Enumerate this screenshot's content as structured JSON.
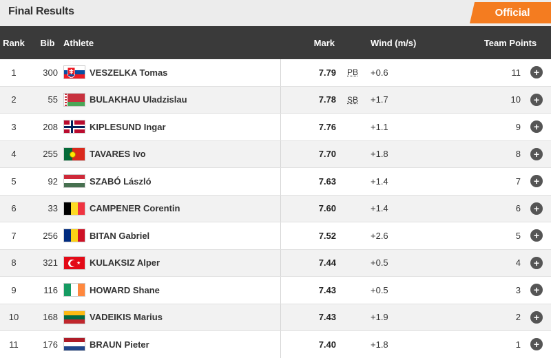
{
  "header": {
    "title": "Final Results",
    "status_badge": "Official"
  },
  "columns": {
    "rank": "Rank",
    "bib": "Bib",
    "athlete": "Athlete",
    "mark": "Mark",
    "wind": "Wind (m/s)",
    "team_points": "Team Points"
  },
  "rows": [
    {
      "rank": "1",
      "bib": "300",
      "flag": "svk",
      "athlete": "VESZELKA Tomas",
      "mark": "7.79",
      "note": "PB",
      "wind": "+0.6",
      "points": "11"
    },
    {
      "rank": "2",
      "bib": "55",
      "flag": "blr",
      "athlete": "BULAKHAU Uladzislau",
      "mark": "7.78",
      "note": "SB",
      "wind": "+1.7",
      "points": "10"
    },
    {
      "rank": "3",
      "bib": "208",
      "flag": "nor",
      "athlete": "KIPLESUND Ingar",
      "mark": "7.76",
      "note": "",
      "wind": "+1.1",
      "points": "9"
    },
    {
      "rank": "4",
      "bib": "255",
      "flag": "por",
      "athlete": "TAVARES Ivo",
      "mark": "7.70",
      "note": "",
      "wind": "+1.8",
      "points": "8"
    },
    {
      "rank": "5",
      "bib": "92",
      "flag": "hun",
      "athlete": "SZABÓ László",
      "mark": "7.63",
      "note": "",
      "wind": "+1.4",
      "points": "7"
    },
    {
      "rank": "6",
      "bib": "33",
      "flag": "bel",
      "athlete": "CAMPENER Corentin",
      "mark": "7.60",
      "note": "",
      "wind": "+1.4",
      "points": "6"
    },
    {
      "rank": "7",
      "bib": "256",
      "flag": "rou",
      "athlete": "BITAN Gabriel",
      "mark": "7.52",
      "note": "",
      "wind": "+2.6",
      "points": "5"
    },
    {
      "rank": "8",
      "bib": "321",
      "flag": "tur",
      "athlete": "KULAKSIZ Alper",
      "mark": "7.44",
      "note": "",
      "wind": "+0.5",
      "points": "4"
    },
    {
      "rank": "9",
      "bib": "116",
      "flag": "irl",
      "athlete": "HOWARD Shane",
      "mark": "7.43",
      "note": "",
      "wind": "+0.5",
      "points": "3"
    },
    {
      "rank": "10",
      "bib": "168",
      "flag": "ltu",
      "athlete": "VADEIKIS Marius",
      "mark": "7.43",
      "note": "",
      "wind": "+1.9",
      "points": "2"
    },
    {
      "rank": "11",
      "bib": "176",
      "flag": "ned",
      "athlete": "BRAUN Pieter",
      "mark": "7.40",
      "note": "",
      "wind": "+1.8",
      "points": "1"
    }
  ],
  "colors": {
    "accent": "#f47c20",
    "header_bg": "#3a3a3a",
    "title_bar_bg": "#ececec"
  },
  "icons": {
    "expand": "plus-circle-icon"
  },
  "expand_symbol": "+"
}
